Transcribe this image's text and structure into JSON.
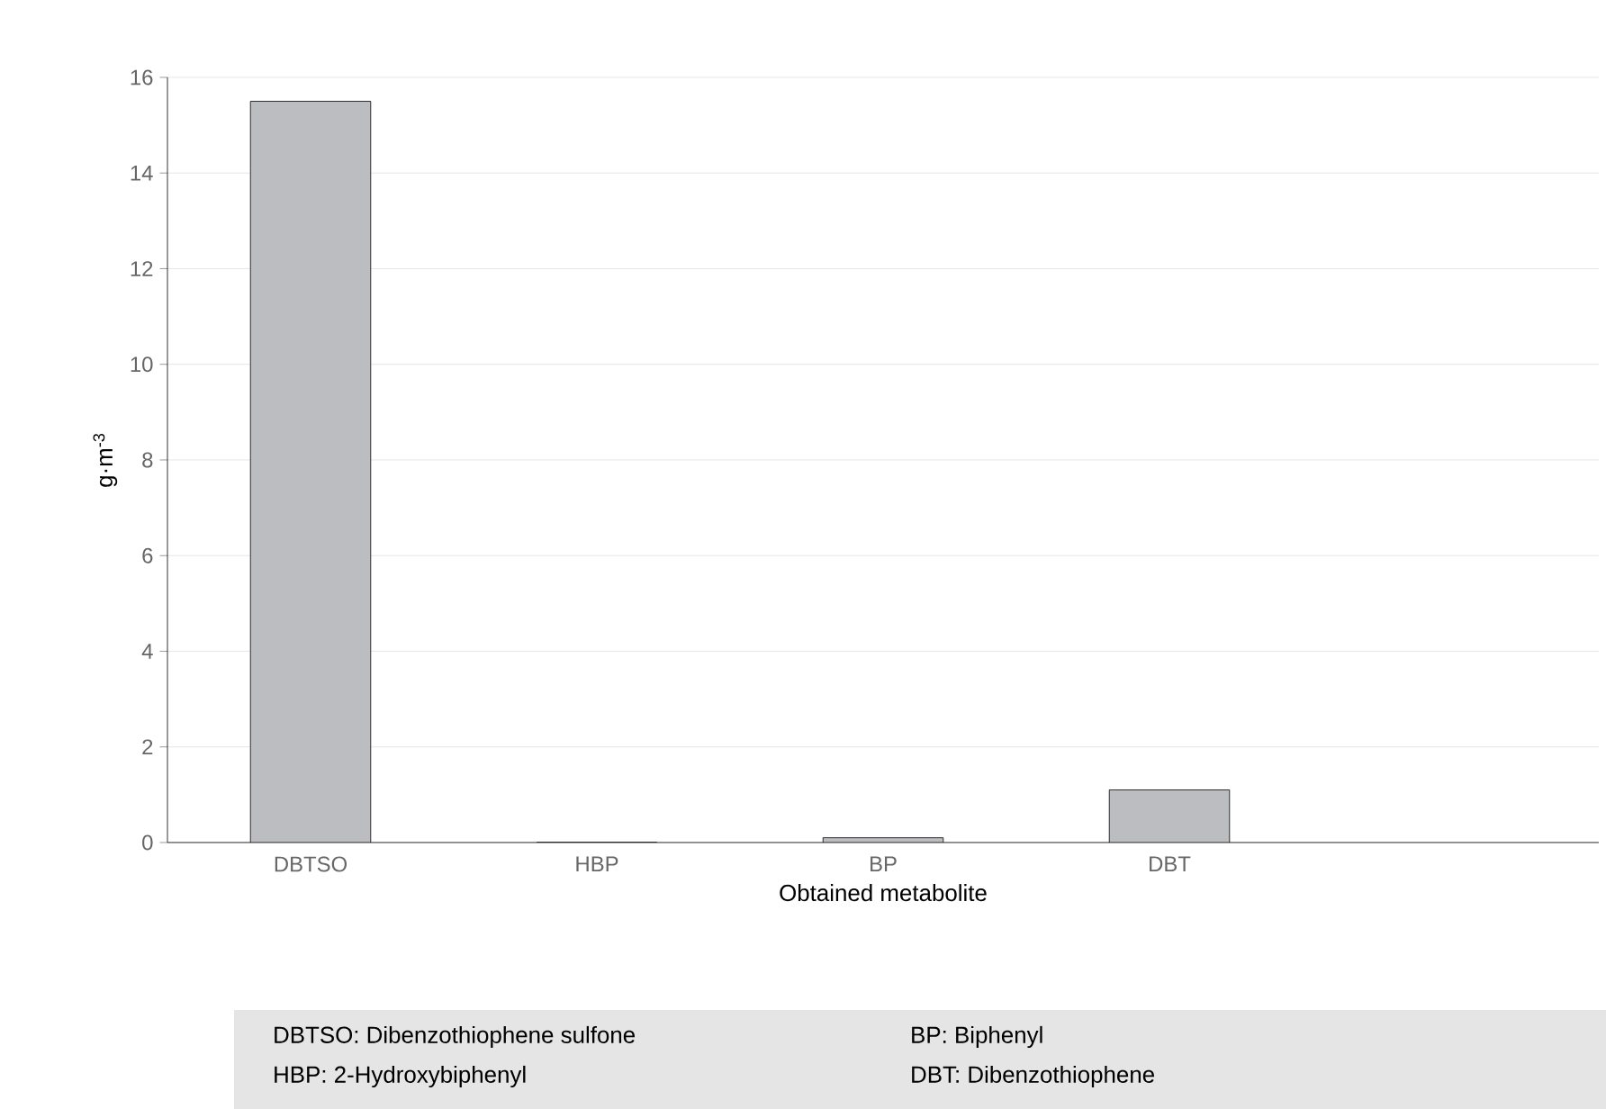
{
  "chart_data": {
    "type": "bar",
    "xlabel": "Obtained metabolite",
    "ylabel": "g·m$^{-3}$",
    "categories": [
      "DBTSO",
      "HBP",
      "BP",
      "DBT",
      null
    ],
    "values": [
      15.5,
      0,
      0.1,
      1.1,
      null
    ],
    "color": "#bcbdc1",
    "ylim": [
      0,
      16
    ],
    "yticks": [
      0,
      2,
      4,
      6,
      8,
      10,
      12,
      14,
      16
    ],
    "grid": "y",
    "annotations": [
      "DBTSO: Dibenzothiophene sulfone",
      "HBP: 2-Hydroxybiphenyl",
      "BP: Biphenyl",
      "DBT: Dibenzothiophene"
    ]
  }
}
